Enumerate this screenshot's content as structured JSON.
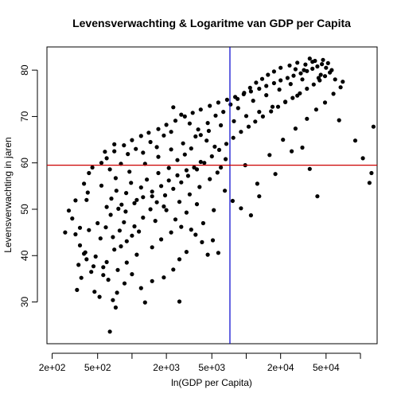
{
  "chart_data": {
    "type": "scatter",
    "title": "Levensverwachting & Logaritme van GDP per Capita",
    "xlabel": "ln(GDP per Capita)",
    "ylabel": "Levensverwachting in jaren",
    "x_scale": "log",
    "xlim": [
      180,
      140000
    ],
    "ylim": [
      21,
      85
    ],
    "x_ticks": [
      {
        "value": 200,
        "label": "2e+02"
      },
      {
        "value": 500,
        "label": "5e+02"
      },
      {
        "value": 2000,
        "label": "2e+03"
      },
      {
        "value": 5000,
        "label": "5e+03"
      },
      {
        "value": 20000,
        "label": "2e+04"
      },
      {
        "value": 50000,
        "label": "5e+04"
      }
    ],
    "x_minor_ticks": [
      1000,
      10000,
      100000
    ],
    "y_ticks": [
      30,
      40,
      50,
      60,
      70,
      80
    ],
    "grid": false,
    "legend": "none",
    "reference_lines": [
      {
        "orientation": "vertical",
        "x": 7200,
        "color": "#0000cc"
      },
      {
        "orientation": "horizontal",
        "y": 59.5,
        "color": "#cc0000"
      }
    ],
    "point_color": "#000000",
    "points": [
      [
        640,
        23.6
      ],
      [
        720,
        28.8
      ],
      [
        1300,
        29.9
      ],
      [
        2600,
        30.1
      ],
      [
        520,
        31.1
      ],
      [
        470,
        32.2
      ],
      [
        330,
        32.6
      ],
      [
        360,
        35.2
      ],
      [
        440,
        36.5
      ],
      [
        560,
        37.5
      ],
      [
        600,
        38.6
      ],
      [
        480,
        39.8
      ],
      [
        380,
        40.4
      ],
      [
        700,
        41.3
      ],
      [
        800,
        42.0
      ],
      [
        900,
        43.1
      ],
      [
        1000,
        44.3
      ],
      [
        1150,
        45.2
      ],
      [
        420,
        45.5
      ],
      [
        350,
        46.0
      ],
      [
        260,
        45.0
      ],
      [
        300,
        48.0
      ],
      [
        500,
        47.0
      ],
      [
        650,
        48.8
      ],
      [
        760,
        50.1
      ],
      [
        880,
        49.5
      ],
      [
        1050,
        51.3
      ],
      [
        1250,
        52.6
      ],
      [
        1500,
        53.8
      ],
      [
        1800,
        55.0
      ],
      [
        2100,
        56.2
      ],
      [
        2500,
        57.3
      ],
      [
        3000,
        58.4
      ],
      [
        3500,
        59.0
      ],
      [
        4000,
        60.2
      ],
      [
        400,
        52.0
      ],
      [
        380,
        55.5
      ],
      [
        420,
        57.8
      ],
      [
        450,
        59.0
      ],
      [
        600,
        61.0
      ],
      [
        700,
        62.5
      ],
      [
        850,
        63.8
      ],
      [
        1000,
        64.9
      ],
      [
        1200,
        65.8
      ],
      [
        1400,
        66.5
      ],
      [
        1700,
        67.3
      ],
      [
        2000,
        68.2
      ],
      [
        2400,
        69.1
      ],
      [
        2900,
        70.0
      ],
      [
        3400,
        70.8
      ],
      [
        4000,
        71.5
      ],
      [
        4800,
        72.3
      ],
      [
        5700,
        73.0
      ],
      [
        6800,
        73.6
      ],
      [
        8000,
        74.2
      ],
      [
        9500,
        74.8
      ],
      [
        11000,
        75.4
      ],
      [
        13000,
        76.0
      ],
      [
        15000,
        76.6
      ],
      [
        17500,
        77.2
      ],
      [
        20000,
        77.8
      ],
      [
        23000,
        78.3
      ],
      [
        26000,
        78.8
      ],
      [
        30000,
        79.3
      ],
      [
        34000,
        79.8
      ],
      [
        38000,
        80.3
      ],
      [
        42000,
        80.8
      ],
      [
        46000,
        81.3
      ],
      [
        36000,
        82.5
      ],
      [
        40000,
        82.0
      ],
      [
        2200,
        45.0
      ],
      [
        1800,
        43.5
      ],
      [
        1500,
        41.8
      ],
      [
        1100,
        40.2
      ],
      [
        900,
        38.5
      ],
      [
        750,
        36.9
      ],
      [
        620,
        34.8
      ],
      [
        1600,
        47.5
      ],
      [
        2000,
        49.8
      ],
      [
        2600,
        51.6
      ],
      [
        3200,
        53.2
      ],
      [
        3900,
        54.8
      ],
      [
        4800,
        56.5
      ],
      [
        5600,
        57.9
      ],
      [
        6500,
        54.0
      ],
      [
        7600,
        51.8
      ],
      [
        9000,
        50.2
      ],
      [
        11000,
        48.7
      ],
      [
        13000,
        52.8
      ],
      [
        18000,
        57.6
      ],
      [
        25000,
        62.5
      ],
      [
        31000,
        63.3
      ],
      [
        36000,
        58.7
      ],
      [
        42000,
        52.8
      ],
      [
        65000,
        69.2
      ],
      [
        90000,
        64.8
      ],
      [
        105000,
        61.0
      ],
      [
        120000,
        55.7
      ],
      [
        130000,
        67.8
      ],
      [
        125000,
        57.8
      ],
      [
        70000,
        77.5
      ],
      [
        60000,
        78.0
      ],
      [
        28000,
        74.5
      ],
      [
        22000,
        73.2
      ],
      [
        17000,
        72.1
      ],
      [
        13000,
        71.0
      ],
      [
        10000,
        70.1
      ],
      [
        7800,
        69.0
      ],
      [
        6000,
        68.1
      ],
      [
        4700,
        66.9
      ],
      [
        3600,
        65.7
      ],
      [
        2800,
        64.2
      ],
      [
        2200,
        62.9
      ],
      [
        1700,
        61.3
      ],
      [
        1300,
        59.8
      ],
      [
        950,
        58.1
      ],
      [
        720,
        56.7
      ],
      [
        540,
        55.1
      ],
      [
        410,
        53.6
      ],
      [
        320,
        51.9
      ],
      [
        280,
        49.7
      ],
      [
        320,
        44.6
      ],
      [
        350,
        42.2
      ],
      [
        390,
        40.7
      ],
      [
        530,
        43.7
      ],
      [
        590,
        46.1
      ],
      [
        680,
        44.0
      ],
      [
        780,
        45.4
      ],
      [
        850,
        47.2
      ],
      [
        1050,
        46.3
      ],
      [
        1250,
        48.2
      ],
      [
        1450,
        50.0
      ],
      [
        1650,
        51.5
      ],
      [
        1950,
        53.0
      ],
      [
        2300,
        54.4
      ],
      [
        2700,
        55.8
      ],
      [
        3100,
        57.2
      ],
      [
        3700,
        58.6
      ],
      [
        4300,
        60.0
      ],
      [
        5000,
        61.4
      ],
      [
        5800,
        62.8
      ],
      [
        6700,
        64.1
      ],
      [
        7700,
        65.4
      ],
      [
        9000,
        66.7
      ],
      [
        10500,
        67.8
      ],
      [
        12000,
        68.9
      ],
      [
        14000,
        70.0
      ],
      [
        16500,
        71.1
      ],
      [
        19000,
        72.1
      ],
      [
        22000,
        73.1
      ],
      [
        25500,
        74.0
      ],
      [
        29500,
        75.0
      ],
      [
        34000,
        76.0
      ],
      [
        39000,
        76.9
      ],
      [
        44000,
        77.8
      ],
      [
        49000,
        78.7
      ],
      [
        54000,
        79.5
      ],
      [
        20000,
        80.5
      ],
      [
        24000,
        81.0
      ],
      [
        28000,
        81.6
      ],
      [
        32000,
        80.0
      ],
      [
        45000,
        79.0
      ],
      [
        50000,
        80.5
      ],
      [
        56000,
        80.0
      ],
      [
        3000,
        40.8
      ],
      [
        2600,
        39.2
      ],
      [
        2300,
        37.0
      ],
      [
        1900,
        35.3
      ],
      [
        1500,
        34.5
      ],
      [
        1200,
        33.0
      ],
      [
        1000,
        36.0
      ],
      [
        860,
        34.0
      ],
      [
        740,
        32.0
      ],
      [
        680,
        30.4
      ],
      [
        560,
        35.8
      ],
      [
        460,
        37.7
      ],
      [
        400,
        39.2
      ],
      [
        340,
        38.0
      ],
      [
        3600,
        44.5
      ],
      [
        4200,
        47.0
      ],
      [
        5200,
        49.8
      ],
      [
        6000,
        59.0
      ],
      [
        6600,
        60.8
      ],
      [
        5300,
        63.5
      ],
      [
        4500,
        64.8
      ],
      [
        3800,
        67.2
      ],
      [
        3200,
        68.5
      ],
      [
        2700,
        70.4
      ],
      [
        2300,
        72.0
      ],
      [
        8500,
        71.8
      ],
      [
        11500,
        73.4
      ],
      [
        15000,
        74.6
      ],
      [
        19500,
        75.8
      ],
      [
        24500,
        77.0
      ],
      [
        31000,
        78.0
      ],
      [
        9800,
        59.5
      ],
      [
        12500,
        55.5
      ],
      [
        16000,
        61.7
      ],
      [
        21000,
        65.0
      ],
      [
        27000,
        67.4
      ],
      [
        34000,
        69.5
      ],
      [
        41000,
        71.5
      ],
      [
        49000,
        73.0
      ],
      [
        58000,
        74.9
      ],
      [
        67000,
        76.3
      ],
      [
        540,
        60.0
      ],
      [
        580,
        62.4
      ],
      [
        640,
        58.6
      ],
      [
        700,
        64.0
      ],
      [
        800,
        59.8
      ],
      [
        920,
        61.9
      ],
      [
        1080,
        63.0
      ],
      [
        1250,
        62.2
      ],
      [
        1450,
        64.5
      ],
      [
        1650,
        63.4
      ],
      [
        1900,
        65.9
      ],
      [
        2200,
        66.7
      ],
      [
        2500,
        60.6
      ],
      [
        2900,
        61.8
      ],
      [
        3300,
        63.1
      ],
      [
        4000,
        66.0
      ],
      [
        4600,
        68.6
      ],
      [
        5400,
        70.2
      ],
      [
        6300,
        71.0
      ],
      [
        7300,
        72.6
      ],
      [
        8400,
        73.8
      ],
      [
        9600,
        75.1
      ],
      [
        10800,
        76.2
      ],
      [
        12200,
        77.3
      ],
      [
        13800,
        78.1
      ],
      [
        15500,
        79.0
      ],
      [
        17500,
        79.7
      ],
      [
        27000,
        80.2
      ],
      [
        33000,
        81.2
      ],
      [
        38000,
        81.8
      ],
      [
        47000,
        82.2
      ],
      [
        52000,
        81.5
      ],
      [
        43000,
        78.3
      ],
      [
        600,
        50.5
      ],
      [
        660,
        52.3
      ],
      [
        730,
        54.0
      ],
      [
        810,
        51.0
      ],
      [
        890,
        53.5
      ],
      [
        980,
        55.7
      ],
      [
        1100,
        52.0
      ],
      [
        1200,
        54.7
      ],
      [
        1350,
        56.4
      ],
      [
        1500,
        52.8
      ],
      [
        1700,
        57.8
      ],
      [
        1900,
        50.6
      ],
      [
        2100,
        58.9
      ],
      [
        2400,
        47.8
      ],
      [
        2700,
        46.2
      ],
      [
        3000,
        49.3
      ],
      [
        3300,
        45.6
      ],
      [
        3700,
        51.1
      ],
      [
        4100,
        42.9
      ],
      [
        4600,
        40.2
      ],
      [
        5100,
        43.3
      ],
      [
        5700,
        40.6
      ]
    ]
  }
}
